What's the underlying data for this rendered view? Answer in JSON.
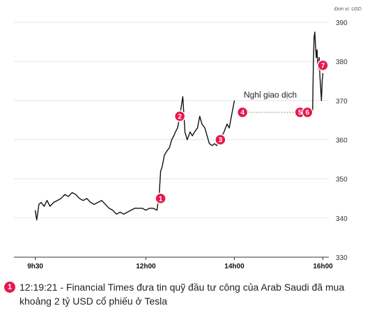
{
  "chart_data": {
    "type": "line",
    "unit_label": "Đơn vị: USD",
    "ylim": [
      330,
      390
    ],
    "y_ticks": [
      330,
      340,
      350,
      360,
      370,
      380,
      390
    ],
    "x_tick_labels": [
      "9h30",
      "12h00",
      "14h00",
      "16h00"
    ],
    "x_tick_minutes": [
      570,
      720,
      840,
      960
    ],
    "pause_label": "Nghỉ giao dịch",
    "grid": true,
    "series": [
      {
        "values_minutes": [
          570,
          572,
          575,
          578,
          582,
          586,
          590,
          595,
          600,
          605,
          610,
          615,
          620,
          625,
          630,
          635,
          640,
          645,
          650,
          655,
          660,
          665,
          670,
          675,
          680,
          685,
          690,
          695,
          700,
          705,
          710,
          715,
          720,
          725,
          730,
          735,
          738,
          740,
          742,
          745,
          748,
          752,
          755,
          758,
          760,
          763,
          766,
          770,
          773,
          776,
          780,
          783,
          786,
          790,
          793,
          796,
          800,
          803,
          806,
          810,
          813,
          816,
          820,
          823,
          826,
          830,
          833,
          836,
          840
        ],
        "values": [
          342,
          339.5,
          343.5,
          344,
          343,
          344.5,
          343,
          344,
          344.5,
          345,
          346,
          345.5,
          346.5,
          346,
          345,
          344.5,
          345,
          344,
          343.5,
          344,
          344.5,
          343.5,
          342.5,
          342,
          341,
          341.5,
          341,
          341.5,
          342,
          342.5,
          342.5,
          342.5,
          342,
          342.5,
          342.5,
          342,
          346,
          352,
          353,
          356,
          357,
          358,
          360,
          361,
          362,
          363,
          366,
          371,
          362,
          360,
          362,
          361,
          362,
          363,
          366,
          364,
          363,
          361,
          359,
          358.5,
          359,
          358.5,
          360,
          361,
          362,
          364,
          363,
          366,
          370
        ]
      },
      {
        "values_minutes": [
          946,
          947,
          948,
          949,
          950,
          951,
          952,
          953,
          954,
          955,
          956,
          957,
          958,
          959,
          960
        ],
        "values": [
          367,
          379,
          386,
          387.5,
          384,
          381,
          383,
          379,
          378,
          381,
          376,
          373,
          370,
          375,
          377
        ]
      }
    ],
    "annotations": [
      {
        "id": "1",
        "minute": 740,
        "value": 345
      },
      {
        "id": "2",
        "minute": 766,
        "value": 366
      },
      {
        "id": "3",
        "minute": 821,
        "value": 360
      },
      {
        "id": "4",
        "minute": 851,
        "value": 367
      },
      {
        "id": "5",
        "minute": 929,
        "value": 367
      },
      {
        "id": "6",
        "minute": 939,
        "value": 367
      },
      {
        "id": "7",
        "minute": 960,
        "value": 379
      }
    ],
    "pause_range_minutes": [
      858,
      922
    ],
    "pause_value": 367
  },
  "notes": [
    {
      "id": "1",
      "text": "12:19:21 - Financial Times đưa tin quỹ đầu tư công của Arab Saudi đã mua khoảng 2 tỷ USD cổ phiếu ở Tesla"
    }
  ],
  "colors": {
    "line": "#111111",
    "accent": "#e8174d",
    "grid": "#e5e5e5"
  }
}
